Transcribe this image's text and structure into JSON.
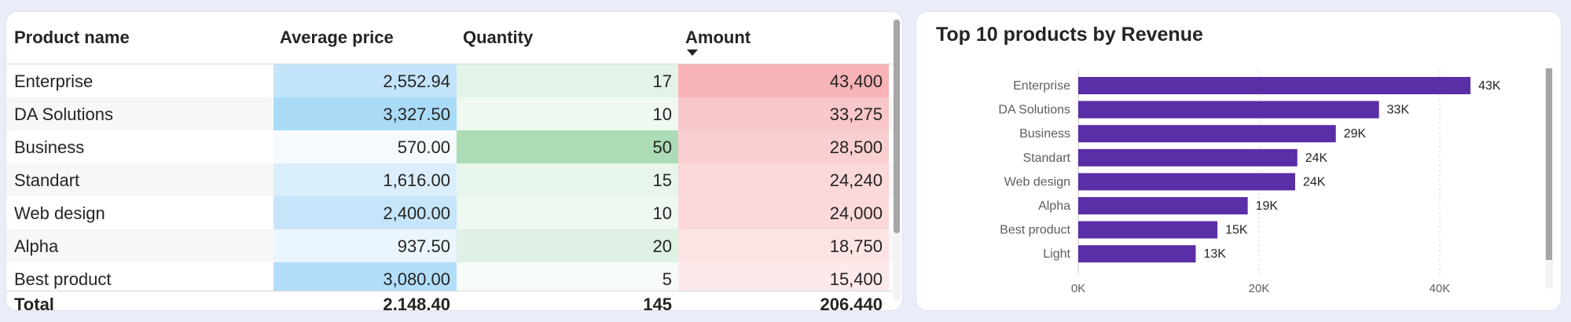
{
  "table": {
    "headers": {
      "product": "Product name",
      "avg": "Average price",
      "qty": "Quantity",
      "amount": "Amount"
    },
    "rows": [
      {
        "name": "Enterprise",
        "avg": "2,552.94",
        "qty": "17",
        "amount": "43,400",
        "avg_color": "#c3e4fa",
        "qty_color": "#e3f3e8",
        "amt_color": "#f7b3b6",
        "row_bg": "#ffffff"
      },
      {
        "name": "DA Solutions",
        "avg": "3,327.50",
        "qty": "10",
        "amount": "33,275",
        "avg_color": "#a9dbf7",
        "qty_color": "#eff8f1",
        "amt_color": "#f8c7c9",
        "row_bg": "#f7f7f7"
      },
      {
        "name": "Business",
        "avg": "570.00",
        "qty": "50",
        "amount": "28,500",
        "avg_color": "#f5fafe",
        "qty_color": "#abdcb5",
        "amt_color": "#f9cfd1",
        "row_bg": "#ffffff"
      },
      {
        "name": "Standart",
        "avg": "1,616.00",
        "qty": "15",
        "amount": "24,240",
        "avg_color": "#daeefb",
        "qty_color": "#e7f5eb",
        "amt_color": "#fbd8da",
        "row_bg": "#f7f7f7"
      },
      {
        "name": "Web design",
        "avg": "2,400.00",
        "qty": "10",
        "amount": "24,000",
        "avg_color": "#c6e5fa",
        "qty_color": "#eff8f1",
        "amt_color": "#fbd9db",
        "row_bg": "#ffffff"
      },
      {
        "name": "Alpha",
        "avg": "937.50",
        "qty": "20",
        "amount": "18,750",
        "avg_color": "#ebf5fd",
        "qty_color": "#dff1e4",
        "amt_color": "#fce3e4",
        "row_bg": "#f7f7f7"
      },
      {
        "name": "Best product",
        "avg": "3,080.00",
        "qty": "5",
        "amount": "15,400",
        "avg_color": "#b2defa",
        "qty_color": "#f7fbf8",
        "amt_color": "#fde9ea",
        "row_bg": "#ffffff"
      }
    ],
    "total": {
      "label": "Total",
      "avg": "2,148.40",
      "qty": "145",
      "amount": "206,440"
    }
  },
  "chart": {
    "title": "Top 10 products by Revenue",
    "bar_color": "#5a2ea6"
  },
  "chart_data": {
    "type": "bar",
    "orientation": "horizontal",
    "title": "Top 10 products by Revenue",
    "categories": [
      "Enterprise",
      "DA Solutions",
      "Business",
      "Standart",
      "Web design",
      "Alpha",
      "Best product",
      "Light"
    ],
    "values": [
      43400,
      33275,
      28500,
      24240,
      24000,
      18750,
      15400,
      13000
    ],
    "data_labels": [
      "43K",
      "33K",
      "29K",
      "24K",
      "24K",
      "19K",
      "15K",
      "13K"
    ],
    "x_ticks": [
      "0K",
      "20K",
      "40K"
    ],
    "x_tick_values": [
      0,
      20000,
      40000
    ],
    "xlim": [
      0,
      48000
    ],
    "grid": "vertical dotted",
    "legend": "none"
  }
}
